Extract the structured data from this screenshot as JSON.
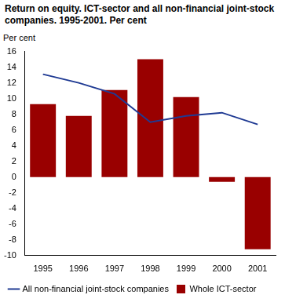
{
  "chart_data": {
    "type": "bar",
    "title": "Return on equity. ICT-sector and all non-financial joint-stock companies. 1995-2001. Per cent",
    "y_label": "Per cent",
    "categories": [
      "1995",
      "1996",
      "1997",
      "1998",
      "1999",
      "2000",
      "2001"
    ],
    "series": [
      {
        "name": "All non-financial joint-stock companies",
        "type": "line",
        "color": "#1f3a93",
        "values": [
          13.1,
          12.0,
          10.6,
          7.0,
          7.8,
          8.2,
          6.7
        ]
      },
      {
        "name": "Whole ICT-sector",
        "type": "bar",
        "color": "#990000",
        "values": [
          9.3,
          7.8,
          11.1,
          15.0,
          10.2,
          -0.6,
          -9.2
        ]
      }
    ],
    "ylim": [
      -10,
      16
    ],
    "yticks": [
      -10,
      -8,
      -6,
      -4,
      -2,
      0,
      2,
      4,
      6,
      8,
      10,
      12,
      14,
      16
    ],
    "grid": false,
    "legend": "bottom"
  }
}
